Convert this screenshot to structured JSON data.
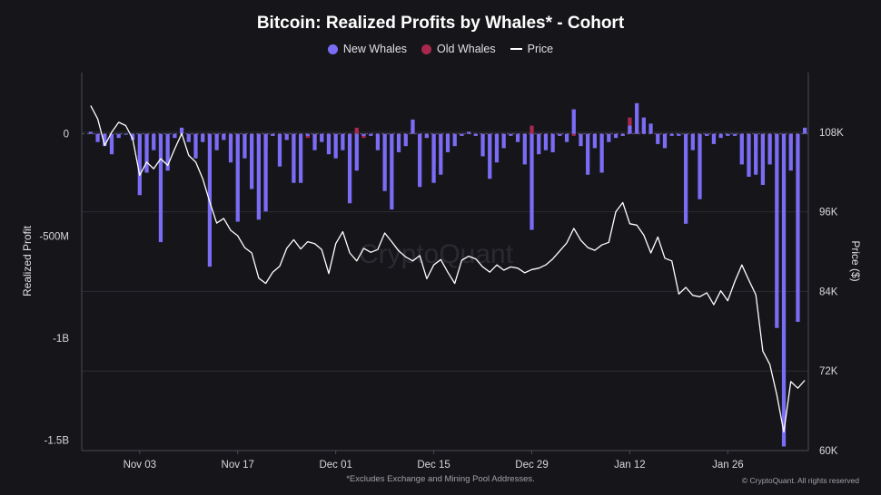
{
  "title": "Bitcoin: Realized Profits by Whales* - Cohort",
  "legend": [
    {
      "label": "New Whales",
      "color": "#7b6cf6",
      "kind": "dot"
    },
    {
      "label": "Old Whales",
      "color": "#a8284e",
      "kind": "dot"
    },
    {
      "label": "Price",
      "color": "#ffffff",
      "kind": "line"
    }
  ],
  "footnote": "*Excludes Exchange and Mining Pool Addresses.",
  "copyright": "© CryptoQuant. All rights reserved",
  "watermark": "CryptoQuant",
  "chart_data": {
    "type": "bar",
    "ylabel": "Realized Profit",
    "y2label": "Price ($)",
    "ylim": [
      -1550000000,
      300000000
    ],
    "y2lim": [
      60000,
      117000
    ],
    "y_ticks": [
      {
        "v": 0,
        "label": "0"
      },
      {
        "v": -500000000,
        "label": "-500M"
      },
      {
        "v": -1000000000,
        "label": "-1B"
      },
      {
        "v": -1500000000,
        "label": "-1.5B"
      }
    ],
    "y2_ticks": [
      {
        "v": 108000,
        "label": "108K"
      },
      {
        "v": 96000,
        "label": "96K"
      },
      {
        "v": 84000,
        "label": "84K"
      },
      {
        "v": 72000,
        "label": "72K"
      },
      {
        "v": 60000,
        "label": "60K"
      }
    ],
    "x_ticks": [
      {
        "i": 7,
        "label": "Nov 03"
      },
      {
        "i": 21,
        "label": "Nov 17"
      },
      {
        "i": 35,
        "label": "Dec 01"
      },
      {
        "i": 49,
        "label": "Dec 15"
      },
      {
        "i": 63,
        "label": "Dec 29"
      },
      {
        "i": 77,
        "label": "Jan 12"
      },
      {
        "i": 91,
        "label": "Jan 26"
      }
    ],
    "new_whales_millions": [
      10,
      -40,
      -60,
      -100,
      -20,
      0,
      -30,
      -300,
      -190,
      -80,
      -530,
      -180,
      -20,
      30,
      -40,
      -120,
      -40,
      -650,
      -80,
      -30,
      -140,
      -430,
      -120,
      -270,
      -420,
      -380,
      -10,
      -160,
      -30,
      -240,
      -240,
      -10,
      -80,
      -40,
      -100,
      -120,
      -80,
      -340,
      -180,
      -10,
      -10,
      -80,
      -280,
      -370,
      -90,
      -60,
      70,
      -260,
      -20,
      -240,
      -200,
      -90,
      -60,
      -10,
      10,
      -10,
      -110,
      -220,
      -140,
      -70,
      -10,
      -40,
      -150,
      -470,
      -100,
      -80,
      -90,
      -10,
      -40,
      120,
      -60,
      -200,
      -70,
      -190,
      -40,
      -20,
      -10,
      40,
      150,
      80,
      50,
      -50,
      -70,
      -10,
      -10,
      -440,
      -80,
      -320,
      -10,
      -50,
      -20,
      -10,
      -10,
      -150,
      -210,
      -200,
      -250,
      -150,
      -950,
      -1530,
      -180,
      -920,
      30
    ],
    "old_whales_millions": [
      0,
      -10,
      0,
      0,
      0,
      0,
      0,
      0,
      -10,
      0,
      -20,
      0,
      0,
      0,
      0,
      0,
      -10,
      -30,
      -20,
      -20,
      -50,
      -40,
      -10,
      -10,
      -50,
      -70,
      -10,
      -20,
      0,
      -30,
      -10,
      -20,
      -40,
      -10,
      -20,
      -10,
      0,
      -20,
      30,
      -20,
      0,
      -10,
      -20,
      -10,
      -10,
      0,
      30,
      -50,
      -20,
      -150,
      -50,
      -10,
      0,
      -10,
      0,
      -10,
      -20,
      -20,
      -10,
      -10,
      0,
      -20,
      -10,
      40,
      -20,
      -10,
      0,
      -10,
      0,
      -10,
      -10,
      -10,
      -10,
      -10,
      0,
      0,
      -10,
      80,
      20,
      40,
      0,
      -10,
      -10,
      0,
      0,
      -10,
      -10,
      0,
      -10,
      0,
      0,
      0,
      0,
      -20,
      -20,
      -60,
      -60,
      -80,
      -30,
      -20,
      -50,
      0,
      0
    ],
    "price": [
      112000,
      110000,
      106000,
      108000,
      109500,
      109000,
      107000,
      101500,
      103500,
      102500,
      104000,
      103000,
      105500,
      107800,
      104500,
      103500,
      101000,
      97500,
      94300,
      95000,
      93200,
      92400,
      90600,
      89800,
      86000,
      85200,
      86900,
      87800,
      90500,
      91800,
      90400,
      91500,
      91200,
      90300,
      86700,
      91200,
      93000,
      89800,
      88600,
      90500,
      89900,
      90300,
      92800,
      91500,
      90100,
      89200,
      88600,
      89400,
      85900,
      88000,
      88800,
      86900,
      85200,
      88700,
      89300,
      88900,
      87700,
      86900,
      88000,
      87200,
      87700,
      87500,
      86800,
      87300,
      87500,
      88000,
      88900,
      90100,
      91300,
      93500,
      91700,
      90600,
      90200,
      91000,
      91400,
      96000,
      97400,
      94200,
      94000,
      92500,
      89800,
      92200,
      89000,
      88600,
      83600,
      84600,
      83400,
      83200,
      83800,
      82000,
      84100,
      82600,
      85500,
      88000,
      85700,
      83500,
      75000,
      73000,
      68400,
      62800,
      70400,
      69400,
      70600
    ]
  }
}
